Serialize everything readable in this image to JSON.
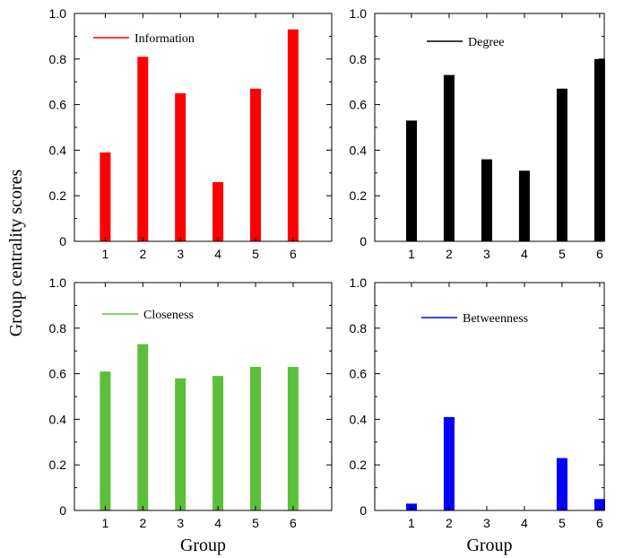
{
  "figure": {
    "ylabel": "Group centrality scores",
    "xlabel": "Group"
  },
  "chart_data": [
    {
      "type": "bar",
      "series_name": "Information",
      "color": "#ff0000",
      "categories": [
        "1",
        "2",
        "3",
        "4",
        "5",
        "6"
      ],
      "values": [
        0.39,
        0.81,
        0.65,
        0.26,
        0.67,
        0.93
      ],
      "ylim": [
        0,
        1.0
      ],
      "yticks": [
        "0",
        "0.2",
        "0.4",
        "0.6",
        "0.8",
        "1.0"
      ],
      "xlabel": "",
      "legend_position": "top-left"
    },
    {
      "type": "bar",
      "series_name": "Degree",
      "color": "#000000",
      "categories": [
        "1",
        "2",
        "3",
        "4",
        "5",
        "6"
      ],
      "values": [
        0.53,
        0.73,
        0.36,
        0.31,
        0.67,
        0.8
      ],
      "ylim": [
        0,
        1.0
      ],
      "yticks": [
        "0",
        "0.2",
        "0.4",
        "0.6",
        "0.8",
        "1.0"
      ],
      "xlabel": "",
      "legend_position": "top-center"
    },
    {
      "type": "bar",
      "series_name": "Closeness",
      "color": "#5cbf3c",
      "categories": [
        "1",
        "2",
        "3",
        "4",
        "5",
        "6"
      ],
      "values": [
        0.61,
        0.73,
        0.58,
        0.59,
        0.63,
        0.63
      ],
      "ylim": [
        0,
        1.0
      ],
      "yticks": [
        "0",
        "0.2",
        "0.4",
        "0.6",
        "0.8",
        "1.0"
      ],
      "xlabel": "Group",
      "legend_position": "top-left"
    },
    {
      "type": "bar",
      "series_name": "Betweenness",
      "color": "#0000ff",
      "categories": [
        "1",
        "2",
        "3",
        "4",
        "5",
        "6"
      ],
      "values": [
        0.03,
        0.41,
        0.0,
        0.0,
        0.23,
        0.05
      ],
      "ylim": [
        0,
        1.0
      ],
      "yticks": [
        "0",
        "0.2",
        "0.4",
        "0.6",
        "0.8",
        "1.0"
      ],
      "xlabel": "Group",
      "legend_position": "top-center"
    }
  ]
}
